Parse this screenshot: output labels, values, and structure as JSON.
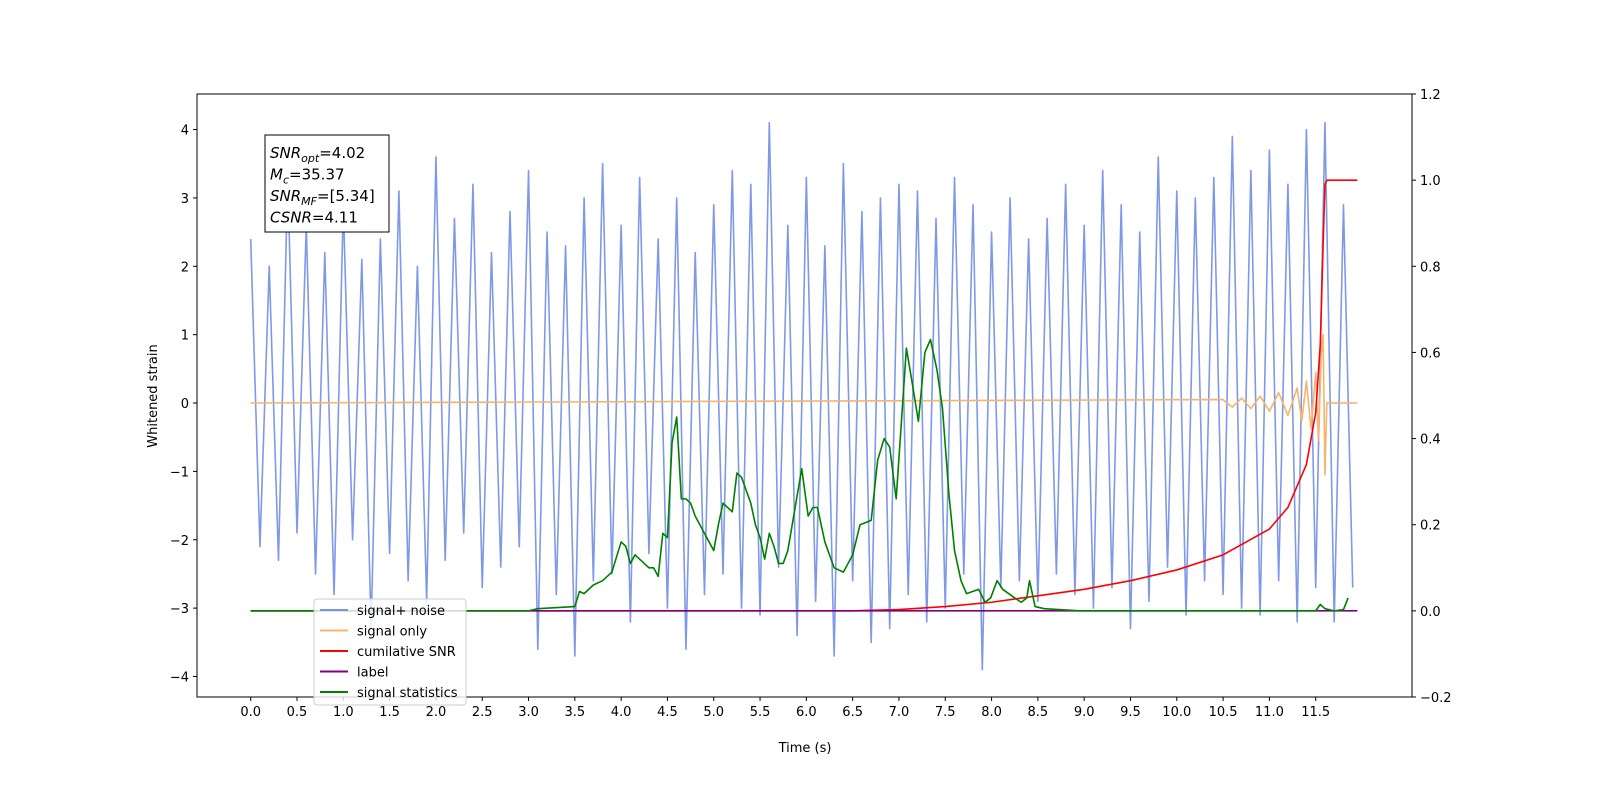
{
  "chart_data": {
    "type": "line",
    "xlabel": "Time (s)",
    "ylabel": "Whitened strain",
    "xlim": [
      -0.58,
      12.54
    ],
    "ylim": [
      -4.3,
      4.52
    ],
    "y2lim": [
      -0.2,
      1.2
    ],
    "grid": false,
    "legend": "lower left",
    "xticks": [
      {
        "value": 0,
        "label": "0.0"
      },
      0.5,
      {
        "value": 1,
        "label": "1.0"
      },
      1.5,
      {
        "value": 2,
        "label": "2.0"
      },
      2.5,
      {
        "value": 3,
        "label": "3.0"
      },
      3.5,
      {
        "value": 4,
        "label": "4.0"
      },
      4.5,
      {
        "value": 5,
        "label": "5.0"
      },
      5.5,
      {
        "value": 6,
        "label": "6.0"
      },
      6.5,
      {
        "value": 7,
        "label": "7.0"
      },
      7.5,
      {
        "value": 8,
        "label": "8.0"
      },
      8.5,
      {
        "value": 9,
        "label": "9.0"
      },
      9.5,
      {
        "value": 10,
        "label": "10.0"
      },
      10.5,
      {
        "value": 11,
        "label": "11.0"
      },
      11.5
    ],
    "yticks": [
      {
        "value": -4,
        "label": "−4"
      },
      {
        "value": -3,
        "label": "−3"
      },
      {
        "value": -2,
        "label": "−2"
      },
      {
        "value": -1,
        "label": "−1"
      },
      0,
      1,
      2,
      3,
      4
    ],
    "y2ticks": [
      {
        "value": -0.2,
        "label": "−0.2"
      },
      {
        "value": 0,
        "label": "0.0"
      },
      0.2,
      0.4,
      0.6,
      0.8,
      {
        "value": 1,
        "label": "1.0"
      },
      1.2
    ],
    "annotation": [
      {
        "symbol": "SNR",
        "subscript": "opt",
        "text": "=4.02"
      },
      {
        "symbol": "M",
        "subscript": "c",
        "text": "=35.37"
      },
      {
        "symbol": "SNR",
        "subscript": "MF",
        "text": "=[5.34]"
      },
      {
        "symbol": "CSNR",
        "subscript": null,
        "text": "=4.11"
      }
    ],
    "series": [
      {
        "name": "signal+ noise",
        "color": "#7893e6",
        "axis": "y",
        "x": [
          0,
          0.1,
          0.2,
          0.3,
          0.4,
          0.5,
          0.6,
          0.7,
          0.8,
          0.9,
          1,
          1.1,
          1.2,
          1.3,
          1.4,
          1.5,
          1.6,
          1.7,
          1.8,
          1.9,
          2,
          2.1,
          2.2,
          2.3,
          2.4,
          2.5,
          2.6,
          2.7,
          2.8,
          2.9,
          3,
          3.1,
          3.2,
          3.3,
          3.4,
          3.5,
          3.6,
          3.7,
          3.8,
          3.9,
          4,
          4.1,
          4.2,
          4.3,
          4.4,
          4.5,
          4.6,
          4.7,
          4.8,
          4.9,
          5,
          5.1,
          5.2,
          5.3,
          5.4,
          5.5,
          5.6,
          5.7,
          5.8,
          5.9,
          6,
          6.1,
          6.2,
          6.3,
          6.4,
          6.5,
          6.6,
          6.7,
          6.8,
          6.9,
          7,
          7.1,
          7.2,
          7.3,
          7.4,
          7.5,
          7.6,
          7.7,
          7.8,
          7.9,
          8,
          8.1,
          8.2,
          8.3,
          8.4,
          8.5,
          8.6,
          8.7,
          8.8,
          8.9,
          9,
          9.1,
          9.2,
          9.3,
          9.4,
          9.5,
          9.6,
          9.7,
          9.8,
          9.9,
          10,
          10.1,
          10.2,
          10.3,
          10.4,
          10.5,
          10.6,
          10.7,
          10.8,
          10.9,
          11,
          11.1,
          11.2,
          11.3,
          11.4,
          11.5,
          11.6,
          11.7,
          11.8,
          11.9
        ],
        "values": [
          2.4,
          -2.1,
          2.0,
          -2.3,
          3.3,
          -1.9,
          2.6,
          -2.5,
          2.2,
          -2.8,
          2.9,
          -2.0,
          2.1,
          -3.3,
          2.4,
          -2.2,
          3.1,
          -2.6,
          2.0,
          -2.9,
          3.6,
          -2.3,
          2.7,
          -1.9,
          3.2,
          -2.7,
          2.2,
          -2.4,
          2.8,
          -2.1,
          3.4,
          -3.6,
          2.5,
          -2.8,
          2.3,
          -3.7,
          3.0,
          -2.6,
          3.5,
          -2.5,
          2.6,
          -3.2,
          3.3,
          -2.2,
          2.4,
          -3.0,
          3.0,
          -3.6,
          2.2,
          -2.8,
          2.9,
          -2.5,
          3.4,
          -3.0,
          3.2,
          -3.1,
          4.1,
          -2.4,
          2.6,
          -3.4,
          3.3,
          -2.9,
          2.3,
          -3.7,
          3.5,
          -2.6,
          2.8,
          -3.5,
          3.0,
          -3.3,
          3.2,
          -2.8,
          3.1,
          -3.2,
          2.7,
          -3.0,
          3.3,
          -2.5,
          2.9,
          -3.9,
          2.5,
          -2.7,
          3.0,
          -2.6,
          2.4,
          -2.9,
          2.7,
          -2.5,
          3.2,
          -2.8,
          2.6,
          -3.0,
          3.4,
          -2.7,
          2.9,
          -3.3,
          2.5,
          -2.9,
          3.6,
          -2.4,
          3.1,
          -3.1,
          3.0,
          -2.6,
          3.3,
          -2.8,
          3.9,
          -3.0,
          3.4,
          -3.1,
          3.7,
          -2.6,
          3.2,
          -3.2,
          4.0,
          -2.7,
          4.1,
          -3.2,
          2.9,
          -2.7
        ]
      },
      {
        "name": "signal only",
        "color": "#f5b56e",
        "axis": "y",
        "x": [
          0,
          10.5,
          10.6,
          10.7,
          10.8,
          10.9,
          11.0,
          11.1,
          11.2,
          11.3,
          11.35,
          11.4,
          11.45,
          11.5,
          11.53,
          11.56,
          11.58,
          11.6,
          11.62,
          11.95
        ],
        "values": [
          0,
          0.05,
          -0.06,
          0.07,
          -0.08,
          0.1,
          -0.12,
          0.15,
          -0.18,
          0.22,
          -0.26,
          0.32,
          -0.38,
          0.45,
          -0.55,
          0.7,
          1.0,
          -1.05,
          0,
          0
        ]
      },
      {
        "name": "cumilative SNR",
        "color": "#ff0000",
        "axis": "y2",
        "x": [
          0,
          6.5,
          7.0,
          7.5,
          8.0,
          8.5,
          9.0,
          9.5,
          10.0,
          10.5,
          11.0,
          11.2,
          11.4,
          11.5,
          11.55,
          11.58,
          11.6,
          11.62,
          11.95
        ],
        "values": [
          0,
          0,
          0.003,
          0.01,
          0.02,
          0.035,
          0.05,
          0.07,
          0.095,
          0.13,
          0.19,
          0.24,
          0.34,
          0.46,
          0.62,
          0.85,
          0.99,
          1.0,
          1.0
        ]
      },
      {
        "name": "label",
        "color": "#800080",
        "axis": "y2",
        "x": [
          0,
          11.95
        ],
        "values": [
          0,
          0
        ]
      },
      {
        "name": "signal statistics",
        "color": "#008000",
        "axis": "y2",
        "x": [
          0,
          3.0,
          3.1,
          3.5,
          3.55,
          3.6,
          3.7,
          3.8,
          3.9,
          4.0,
          4.05,
          4.1,
          4.15,
          4.2,
          4.3,
          4.35,
          4.4,
          4.45,
          4.5,
          4.55,
          4.6,
          4.65,
          4.7,
          4.75,
          4.8,
          4.9,
          5.0,
          5.05,
          5.1,
          5.15,
          5.2,
          5.25,
          5.3,
          5.35,
          5.4,
          5.45,
          5.5,
          5.55,
          5.6,
          5.65,
          5.7,
          5.75,
          5.8,
          5.95,
          6.02,
          6.07,
          6.12,
          6.2,
          6.3,
          6.4,
          6.5,
          6.58,
          6.7,
          6.77,
          6.84,
          6.9,
          6.97,
          7.03,
          7.08,
          7.15,
          7.21,
          7.28,
          7.34,
          7.41,
          7.47,
          7.54,
          7.6,
          7.67,
          7.73,
          7.86,
          7.93,
          7.99,
          8.06,
          8.12,
          8.25,
          8.32,
          8.38,
          8.41,
          8.47,
          8.57,
          8.95,
          11.5,
          11.55,
          11.6,
          11.7,
          11.8,
          11.85
        ],
        "values": [
          0,
          0,
          0.005,
          0.01,
          0.045,
          0.04,
          0.06,
          0.07,
          0.09,
          0.16,
          0.15,
          0.11,
          0.13,
          0.12,
          0.1,
          0.1,
          0.08,
          0.18,
          0.17,
          0.39,
          0.45,
          0.26,
          0.26,
          0.25,
          0.22,
          0.18,
          0.14,
          0.2,
          0.25,
          0.24,
          0.23,
          0.32,
          0.31,
          0.28,
          0.25,
          0.2,
          0.17,
          0.12,
          0.18,
          0.15,
          0.11,
          0.11,
          0.14,
          0.33,
          0.22,
          0.24,
          0.24,
          0.16,
          0.1,
          0.09,
          0.13,
          0.2,
          0.21,
          0.35,
          0.4,
          0.38,
          0.26,
          0.45,
          0.61,
          0.52,
          0.44,
          0.6,
          0.63,
          0.56,
          0.47,
          0.27,
          0.14,
          0.07,
          0.04,
          0.05,
          0.02,
          0.03,
          0.07,
          0.05,
          0.03,
          0.02,
          0.03,
          0.07,
          0.01,
          0.005,
          0,
          0,
          0.015,
          0.005,
          0,
          0.003,
          0.03
        ]
      }
    ]
  }
}
